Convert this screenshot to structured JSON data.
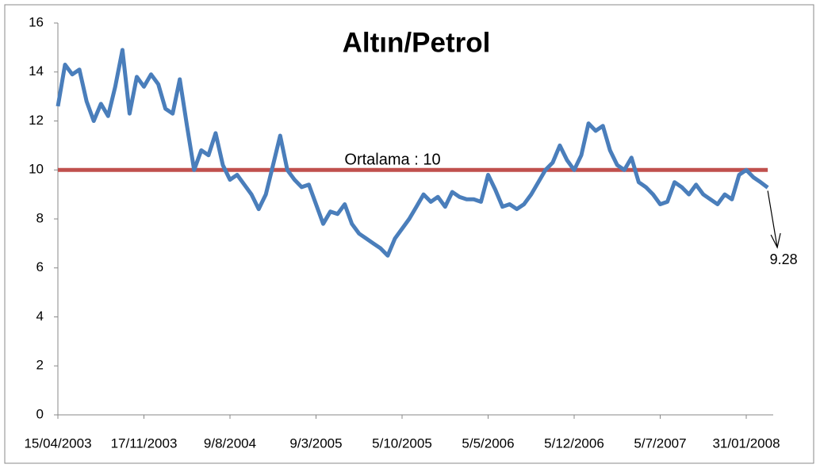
{
  "chart_data": {
    "type": "line",
    "title": "Altın/Petrol",
    "categories": [
      "15/04/2003",
      null,
      null,
      null,
      null,
      null,
      null,
      null,
      null,
      null,
      null,
      null,
      "17/11/2003",
      null,
      null,
      null,
      null,
      null,
      null,
      null,
      null,
      null,
      null,
      null,
      "9/8/2004",
      null,
      null,
      null,
      null,
      null,
      null,
      null,
      null,
      null,
      null,
      null,
      "9/3/2005",
      null,
      null,
      null,
      null,
      null,
      null,
      null,
      null,
      null,
      null,
      null,
      "5/10/2005",
      null,
      null,
      null,
      null,
      null,
      null,
      null,
      null,
      null,
      null,
      null,
      "5/5/2006",
      null,
      null,
      null,
      null,
      null,
      null,
      null,
      null,
      null,
      null,
      null,
      "5/12/2006",
      null,
      null,
      null,
      null,
      null,
      null,
      null,
      null,
      null,
      null,
      null,
      "5/7/2007",
      null,
      null,
      null,
      null,
      null,
      null,
      null,
      null,
      null,
      null,
      null,
      "31/01/2008",
      null,
      null,
      null
    ],
    "series": [
      {
        "color": "#4a7ebb",
        "values": [
          12.6,
          14.3,
          13.9,
          14.1,
          12.8,
          12.0,
          12.7,
          12.2,
          13.4,
          14.9,
          12.3,
          13.8,
          13.4,
          13.9,
          13.5,
          12.5,
          12.3,
          13.7,
          11.8,
          10.0,
          10.8,
          10.6,
          11.5,
          10.2,
          9.6,
          9.8,
          9.4,
          9.0,
          8.4,
          9.0,
          10.2,
          11.4,
          10.0,
          9.6,
          9.3,
          9.4,
          8.6,
          7.8,
          8.3,
          8.2,
          8.6,
          7.8,
          7.4,
          7.2,
          7.0,
          6.8,
          6.5,
          7.2,
          7.6,
          8.0,
          8.5,
          9.0,
          8.7,
          8.9,
          8.5,
          9.1,
          8.9,
          8.8,
          8.8,
          8.7,
          9.8,
          9.2,
          8.5,
          8.6,
          8.4,
          8.6,
          9.0,
          9.5,
          10.0,
          10.3,
          11.0,
          10.4,
          10.0,
          10.6,
          11.9,
          11.6,
          11.8,
          10.8,
          10.2,
          10.0,
          10.5,
          9.5,
          9.3,
          9.0,
          8.6,
          8.7,
          9.5,
          9.3,
          9.0,
          9.4,
          9.0,
          8.8,
          8.6,
          9.0,
          8.8,
          9.8,
          10.0,
          9.7,
          9.5,
          9.28
        ]
      }
    ],
    "average": {
      "label": "Ortalama : 10",
      "value": 10,
      "color": "#c0504d"
    },
    "annotation": {
      "label": "9.28"
    },
    "ylim": [
      0,
      16
    ],
    "yticks": [
      0,
      2,
      4,
      6,
      8,
      10,
      12,
      14,
      16
    ],
    "grid": false
  }
}
